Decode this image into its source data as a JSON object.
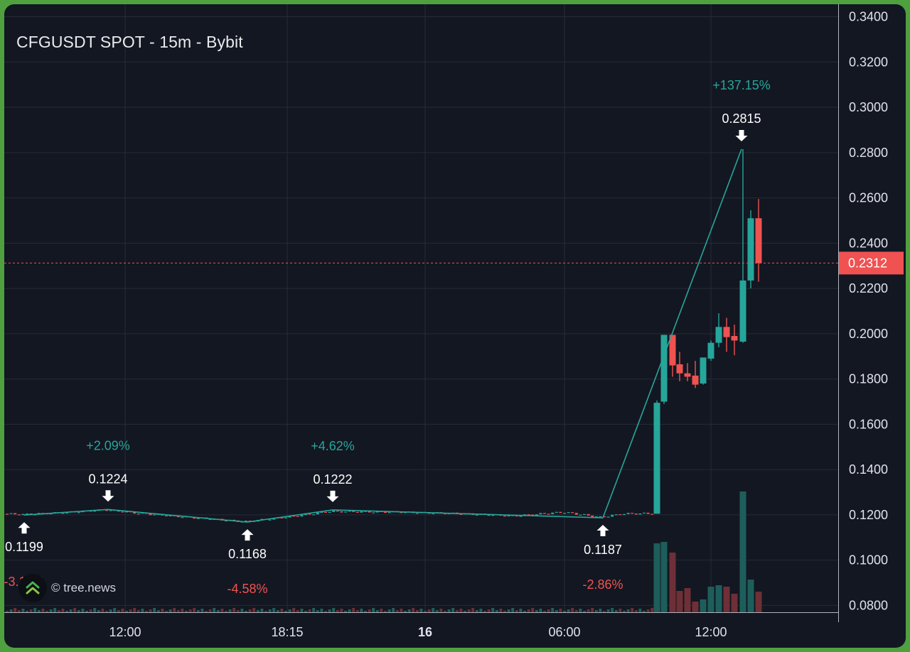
{
  "title": "CFGUSDT SPOT - 15m - Bybit",
  "watermark": "© tree.news",
  "colors": {
    "background": "#131722",
    "grid": "#262b38",
    "up": "#26a69a",
    "down": "#ef5350",
    "zigzag": "#26a69a",
    "price_line": "#ef5350",
    "text": "#e0e3eb"
  },
  "chart_data": {
    "type": "candlestick",
    "y_ticks": [
      "0.3400",
      "0.3200",
      "0.3000",
      "0.2800",
      "0.2600",
      "0.2400",
      "0.2200",
      "0.2000",
      "0.1800",
      "0.1600",
      "0.1400",
      "0.1200",
      "0.1000",
      "0.0800"
    ],
    "ylim": [
      0.077,
      0.3455
    ],
    "x_ticks": [
      {
        "label": "12:00",
        "bold": false
      },
      {
        "label": "18:15",
        "bold": false
      },
      {
        "label": "16",
        "bold": true
      },
      {
        "label": "06:00",
        "bold": false
      },
      {
        "label": "12:00",
        "bold": false
      }
    ],
    "current_price": "0.2312",
    "zigzag": [
      {
        "price": 0.1199,
        "label": "0.1199",
        "type": "low",
        "change": "-3.13%"
      },
      {
        "price": 0.1224,
        "label": "0.1224",
        "type": "high",
        "change": "+2.09%"
      },
      {
        "price": 0.1168,
        "label": "0.1168",
        "type": "low",
        "change": "-4.58%"
      },
      {
        "price": 0.1222,
        "label": "0.1222",
        "type": "high",
        "change": "+4.62%"
      },
      {
        "price": 0.1187,
        "label": "0.1187",
        "type": "low",
        "change": "-2.86%"
      },
      {
        "price": 0.2815,
        "label": "0.2815",
        "type": "high",
        "change": "+137.15%"
      }
    ],
    "candles_major": [
      {
        "o": 0.1205,
        "h": 0.1705,
        "l": 0.1205,
        "c": 0.1695
      },
      {
        "o": 0.17,
        "h": 0.1995,
        "l": 0.169,
        "c": 0.1995
      },
      {
        "o": 0.1995,
        "h": 0.1995,
        "l": 0.181,
        "c": 0.186
      },
      {
        "o": 0.1865,
        "h": 0.192,
        "l": 0.179,
        "c": 0.1825
      },
      {
        "o": 0.1825,
        "h": 0.187,
        "l": 0.179,
        "c": 0.181
      },
      {
        "o": 0.1815,
        "h": 0.188,
        "l": 0.176,
        "c": 0.1775
      },
      {
        "o": 0.178,
        "h": 0.189,
        "l": 0.1775,
        "c": 0.1895
      },
      {
        "o": 0.189,
        "h": 0.197,
        "l": 0.188,
        "c": 0.196
      },
      {
        "o": 0.196,
        "h": 0.209,
        "l": 0.194,
        "c": 0.203
      },
      {
        "o": 0.203,
        "h": 0.207,
        "l": 0.192,
        "c": 0.1985
      },
      {
        "o": 0.199,
        "h": 0.204,
        "l": 0.1905,
        "c": 0.197
      },
      {
        "o": 0.1965,
        "h": 0.2815,
        "l": 0.196,
        "c": 0.2235
      },
      {
        "o": 0.2235,
        "h": 0.2545,
        "l": 0.22,
        "c": 0.251
      },
      {
        "o": 0.251,
        "h": 0.2595,
        "l": 0.223,
        "c": 0.2312
      }
    ]
  }
}
